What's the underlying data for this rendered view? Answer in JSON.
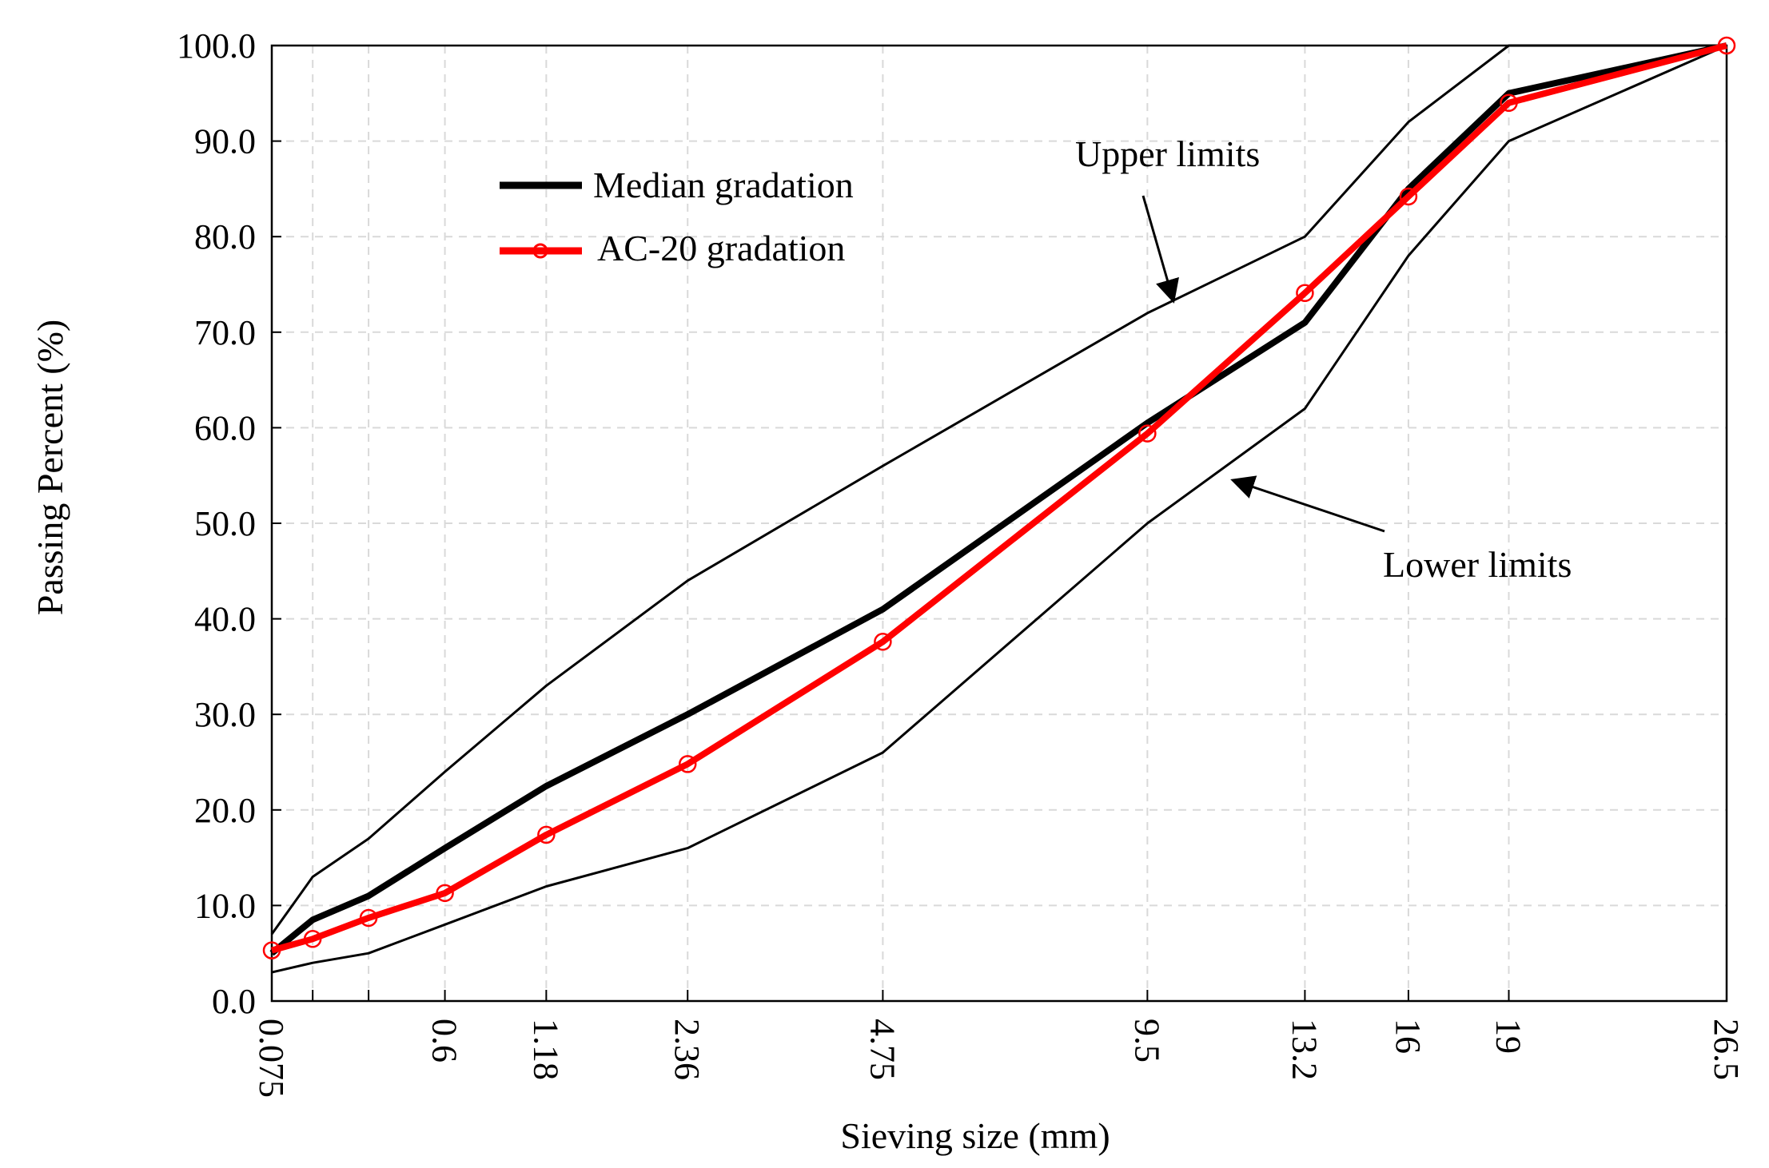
{
  "chart_data": {
    "type": "line",
    "title": "",
    "xlabel": "Sieving size (mm)",
    "ylabel": "Passing Percent (%)",
    "ylim": [
      0,
      100
    ],
    "y_ticks": [
      "0.0",
      "10.0",
      "20.0",
      "30.0",
      "40.0",
      "50.0",
      "60.0",
      "70.0",
      "80.0",
      "90.0",
      "100.0"
    ],
    "x_scale": "sieve size raised to 0.45 power",
    "x_tick_labels": [
      "0.075",
      "0.6",
      "1.18",
      "2.36",
      "4.75",
      "9.5",
      "13.2",
      "16",
      "19",
      "26.5"
    ],
    "x": [
      0.075,
      0.15,
      0.3,
      0.6,
      1.18,
      2.36,
      4.75,
      9.5,
      13.2,
      16,
      19,
      26.5
    ],
    "grid": true,
    "legend_position": "top-left",
    "series": [
      {
        "name": "Median gradation",
        "legend": true,
        "color": "#000000",
        "marker": "none",
        "values": [
          5,
          8.5,
          11,
          16,
          22.5,
          30,
          41,
          60.5,
          71,
          85,
          95,
          100
        ]
      },
      {
        "name": "AC-20 gradation",
        "legend": true,
        "color": "#ff0000",
        "marker": "circle",
        "values": [
          5.3,
          6.5,
          8.7,
          11.3,
          17.4,
          24.8,
          37.6,
          59.4,
          74.1,
          84.2,
          94,
          100
        ]
      },
      {
        "name": "Upper limits",
        "legend": false,
        "color": "#000000",
        "marker": "none",
        "values": [
          7,
          13,
          17,
          24,
          33,
          44,
          56,
          72,
          80,
          92,
          100,
          100
        ]
      },
      {
        "name": "Lower limits",
        "legend": false,
        "color": "#000000",
        "marker": "none",
        "values": [
          3,
          4,
          5,
          8,
          12,
          16,
          26,
          50,
          62,
          78,
          90,
          100
        ]
      }
    ],
    "annotations": [
      {
        "text": "Upper limits",
        "points_to_x": 9.5,
        "points_to_y": 71
      },
      {
        "text": "Lower limits",
        "points_to_x": 11.0,
        "points_to_y": 55
      }
    ]
  }
}
